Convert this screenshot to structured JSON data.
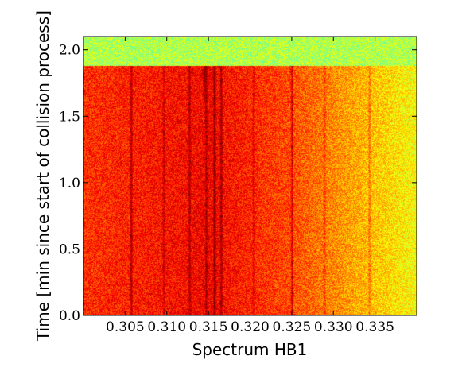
{
  "chart_data": {
    "type": "heatmap",
    "title": "",
    "xlabel": "Spectrum HB1",
    "ylabel": "Time [min since start of collision process]",
    "xlim": [
      0.3,
      0.34
    ],
    "ylim": [
      0.0,
      2.1
    ],
    "x_ticks": [
      0.305,
      0.31,
      0.315,
      0.32,
      0.325,
      0.33,
      0.335
    ],
    "x_tick_labels": [
      "0.305",
      "0.310",
      "0.315",
      "0.320",
      "0.325",
      "0.330",
      "0.335"
    ],
    "y_ticks": [
      0.0,
      0.5,
      1.0,
      1.5,
      2.0
    ],
    "y_tick_labels": [
      "0.0",
      "0.5",
      "1.0",
      "1.5",
      "2.0"
    ],
    "data_end_time": 1.88,
    "background_band": {
      "from_time": 1.88,
      "to_time": 2.1,
      "color": "#3cdc8c"
    },
    "colormap": "jet",
    "intensity_gradient": {
      "x": [
        0.3,
        0.31,
        0.315,
        0.325,
        0.335,
        0.34
      ],
      "level": [
        0.83,
        0.86,
        0.88,
        0.8,
        0.68,
        0.62
      ]
    },
    "lines": [
      {
        "x": 0.3057,
        "strength": 0.9
      },
      {
        "x": 0.3096,
        "strength": 0.55
      },
      {
        "x": 0.3127,
        "strength": 0.7
      },
      {
        "x": 0.3147,
        "strength": 0.6
      },
      {
        "x": 0.3157,
        "strength": 1.0
      },
      {
        "x": 0.3165,
        "strength": 0.85
      },
      {
        "x": 0.3204,
        "strength": 0.55
      },
      {
        "x": 0.325,
        "strength": 0.9
      },
      {
        "x": 0.3289,
        "strength": 0.45
      },
      {
        "x": 0.3343,
        "strength": 0.6
      }
    ],
    "blob": {
      "x": 0.3145,
      "time_from": 1.6,
      "time_to": 1.88
    },
    "grid": false
  }
}
